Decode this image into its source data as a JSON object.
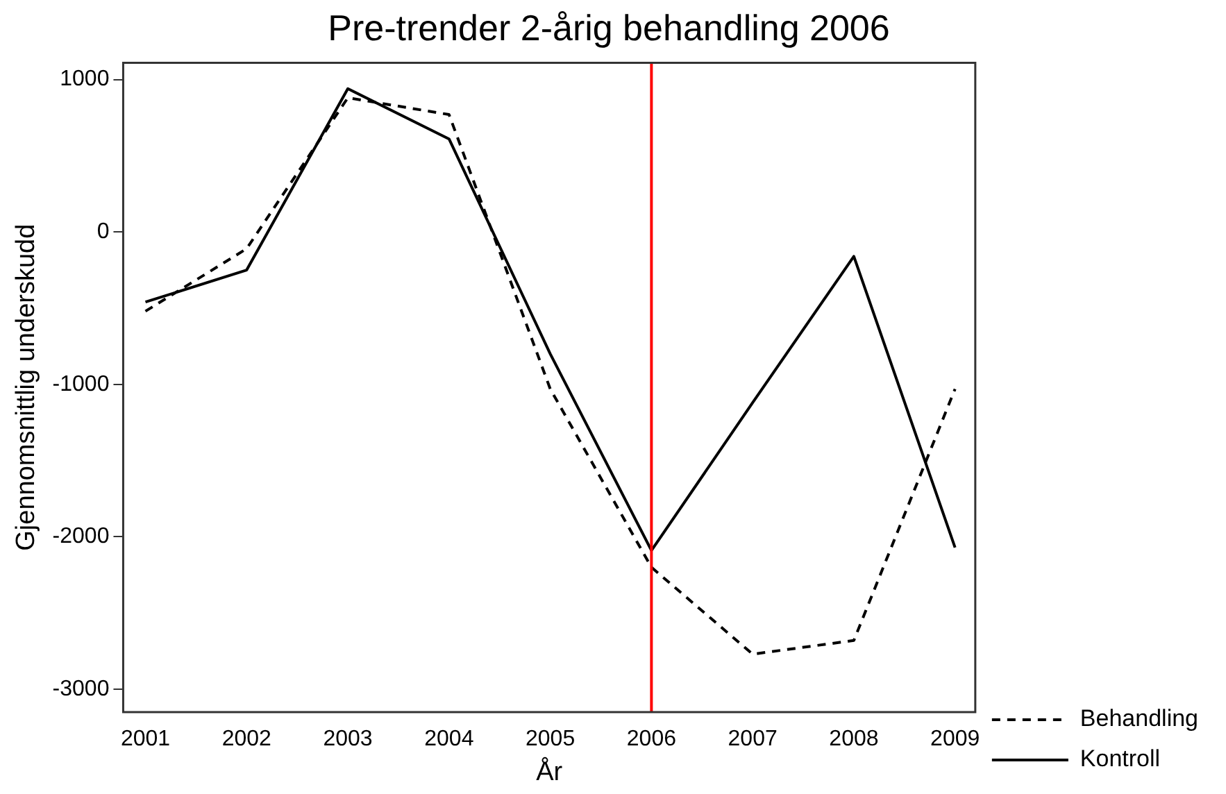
{
  "chart_data": {
    "type": "line",
    "title": "Pre-trender 2-årig behandling 2006",
    "xlabel": "År",
    "ylabel": "Gjennomsnittlig underskudd",
    "x": [
      2001,
      2002,
      2003,
      2004,
      2005,
      2006,
      2007,
      2008,
      2009
    ],
    "series": [
      {
        "name": "Behandling",
        "color": "#000000",
        "line_style": "dashed",
        "values": [
          -520,
          -110,
          880,
          770,
          -1030,
          -2200,
          -2770,
          -2680,
          -1030
        ]
      },
      {
        "name": "Kontroll",
        "color": "#000000",
        "line_style": "solid",
        "values": [
          -460,
          -250,
          940,
          610,
          -800,
          -2090,
          -1120,
          -160,
          -2070
        ]
      }
    ],
    "xlim": [
      2000.78,
      2009.2
    ],
    "xticks": [
      2001,
      2002,
      2003,
      2004,
      2005,
      2006,
      2007,
      2008,
      2009
    ],
    "ylim": [
      -3150,
      1110
    ],
    "yticks": [
      -3000,
      -2000,
      -1000,
      0,
      1000
    ],
    "ref_lines": [
      {
        "axis": "x",
        "value": 2006,
        "color": "#ff0000"
      }
    ],
    "grid": false,
    "legend": "right",
    "marker": "none"
  }
}
